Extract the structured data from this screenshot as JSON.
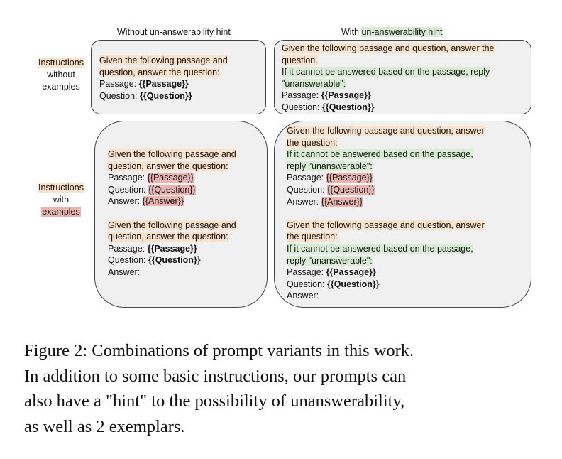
{
  "column_headers": {
    "left": "Without un-answerability hint",
    "right_prefix": "With ",
    "right_highlight": "un-answerability hint"
  },
  "row_labels": {
    "top": [
      "Instructions",
      "without",
      "examples"
    ],
    "bottom": [
      "Instructions",
      "with",
      "examples"
    ]
  },
  "prompt_text": {
    "instr_a": "Given the following passage and",
    "instr_b": "question, answer the question:",
    "instr_wide_a": "Given the following passage and question, answer the",
    "instr_wide_b": "question.",
    "instr_br_a": "Given the following passage and question, answer",
    "instr_br_b": "the question:",
    "hint_tr_a": "If it cannot be answered based on the passage, reply",
    "hint_tr_b": "\"unanswerable\":",
    "hint_br_a": "If it cannot be answered based on the passage,",
    "hint_br_b": "reply \"unanswerable\":",
    "passage_label": "Passage: ",
    "passage_var": "{{Passage}}",
    "question_label": "Question: ",
    "question_var": "{{Question}}",
    "answer_label": "Answer: ",
    "answer_label_plain": "Answer:",
    "answer_var": "{{Answer}}"
  },
  "caption": [
    "Figure 2: Combinations of prompt variants in this work.",
    "In addition to some basic instructions, our prompts can",
    "also have a \"hint\" to the possibility of unanswerability,",
    "as well as 2 exemplars."
  ],
  "colors": {
    "instruction_highlight": "#fbe2cc",
    "hint_highlight": "#d9ecd4",
    "example_highlight": "#eab5b0",
    "box_fill": "#f0f0f0",
    "box_border": "#444444"
  }
}
